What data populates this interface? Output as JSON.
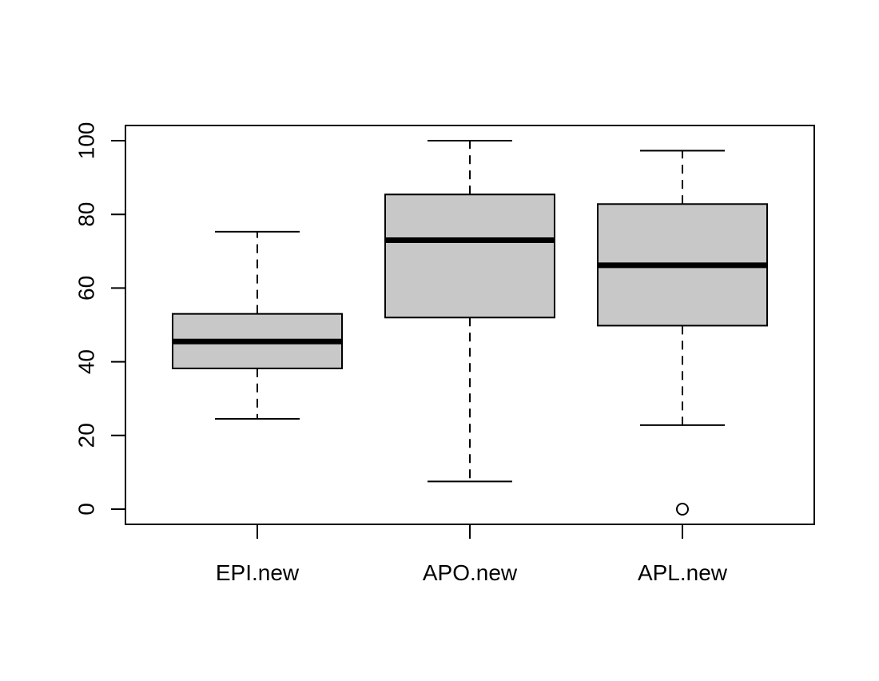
{
  "chart_data": {
    "type": "boxplot",
    "title": "",
    "xlabel": "",
    "ylabel": "",
    "ylim": [
      -4,
      104
    ],
    "y_ticks": [
      0,
      20,
      40,
      60,
      80,
      100
    ],
    "y_tick_labels": [
      "0",
      "20",
      "40",
      "60",
      "80",
      "100"
    ],
    "categories": [
      "EPI.new",
      "APO.new",
      "APL.new"
    ],
    "boxes": [
      {
        "label": "EPI.new",
        "whisker_low": 24.5,
        "q1": 38.2,
        "median": 45.5,
        "q3": 53.0,
        "whisker_high": 75.3,
        "outliers": []
      },
      {
        "label": "APO.new",
        "whisker_low": 7.5,
        "q1": 52.0,
        "median": 73.0,
        "q3": 85.4,
        "whisker_high": 100.0,
        "outliers": []
      },
      {
        "label": "APL.new",
        "whisker_low": 22.8,
        "q1": 49.8,
        "median": 66.2,
        "q3": 82.8,
        "whisker_high": 97.3,
        "outliers": [
          0
        ]
      }
    ],
    "box_fill": "#c8c8c8",
    "line_color": "#000000",
    "grid": false,
    "legend": "none"
  }
}
